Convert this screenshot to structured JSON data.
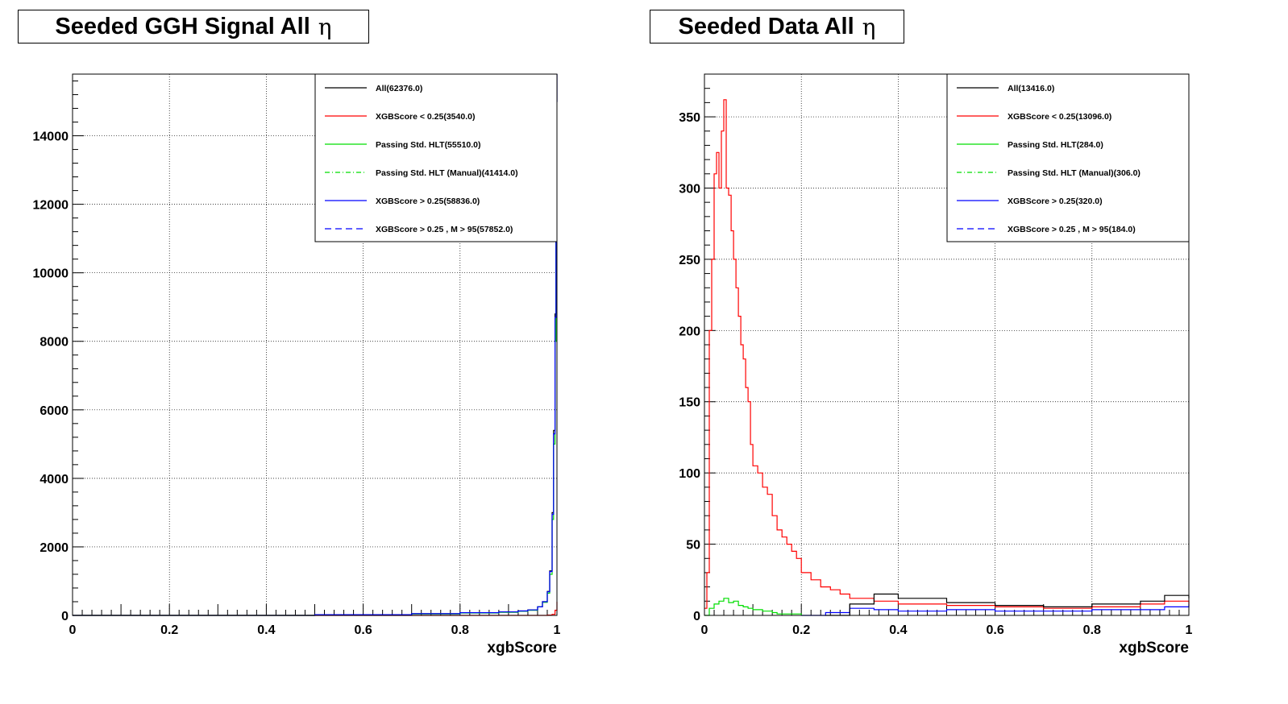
{
  "chart_data": [
    {
      "type": "histogram",
      "title": "Seeded GGH Signal All",
      "title_symbol": "η",
      "xlabel": "xgbScore",
      "ylabel": "",
      "xlim": [
        0,
        1
      ],
      "ylim": [
        0,
        15800
      ],
      "xticks": [
        "0",
        "0.2",
        "0.4",
        "0.6",
        "0.8",
        "1"
      ],
      "yticks": [
        "0",
        "2000",
        "4000",
        "6000",
        "8000",
        "10000",
        "12000",
        "14000"
      ],
      "ytick_values": [
        0,
        2000,
        4000,
        6000,
        8000,
        10000,
        12000,
        14000
      ],
      "grid": true,
      "legend_position": "top-right",
      "legend": [
        {
          "label": "All(62376.0)",
          "color": "#000000",
          "style": "solid"
        },
        {
          "label": "XGBScore < 0.25(3540.0)",
          "color": "#ff0000",
          "style": "solid"
        },
        {
          "label": "Passing Std. HLT(55510.0)",
          "color": "#00dd00",
          "style": "solid"
        },
        {
          "label": "Passing Std. HLT (Manual)(41414.0)",
          "color": "#00dd00",
          "style": "dashdot"
        },
        {
          "label": "XGBScore > 0.25(58836.0)",
          "color": "#0000ff",
          "style": "solid"
        },
        {
          "label": "XGBScore > 0.25 , M > 95(57852.0)",
          "color": "#0000ff",
          "style": "dashed"
        }
      ],
      "series": [
        {
          "x": [
            0.0,
            0.5,
            0.7,
            0.8,
            0.88,
            0.92,
            0.94,
            0.96,
            0.97,
            0.98,
            0.985,
            0.99,
            0.993,
            0.996,
            0.998,
            1.0
          ],
          "y": [
            0,
            20,
            50,
            80,
            100,
            130,
            160,
            250,
            400,
            700,
            1300,
            3000,
            5400,
            8800,
            15000,
            15800
          ],
          "color": "#000000",
          "dash": ""
        },
        {
          "x": [
            0.0,
            0.97,
            0.98,
            0.99,
            0.996,
            1.0
          ],
          "y": [
            0,
            0,
            10,
            30,
            150,
            400
          ],
          "color": "#ff0000",
          "dash": ""
        },
        {
          "x": [
            0.0,
            0.5,
            0.7,
            0.8,
            0.88,
            0.92,
            0.94,
            0.96,
            0.97,
            0.98,
            0.985,
            0.99,
            0.993,
            0.996,
            0.998,
            1.0
          ],
          "y": [
            0,
            15,
            40,
            70,
            90,
            120,
            150,
            250,
            380,
            650,
            1200,
            2800,
            5000,
            8000,
            12000,
            12000
          ],
          "color": "#00dd00",
          "dash": ""
        },
        {
          "x": [
            0.0,
            0.5,
            0.7,
            0.8,
            0.88,
            0.92,
            0.94,
            0.96,
            0.97,
            0.98,
            0.985,
            0.99,
            0.993,
            0.996,
            0.998,
            1.0
          ],
          "y": [
            0,
            20,
            50,
            80,
            100,
            130,
            160,
            250,
            400,
            690,
            1280,
            2950,
            5300,
            8700,
            15000,
            15800
          ],
          "color": "#0000ff",
          "dash": ""
        }
      ]
    },
    {
      "type": "histogram",
      "title": "Seeded Data All",
      "title_symbol": "η",
      "xlabel": "xgbScore",
      "ylabel": "",
      "xlim": [
        0,
        1
      ],
      "ylim": [
        0,
        380
      ],
      "xticks": [
        "0",
        "0.2",
        "0.4",
        "0.6",
        "0.8",
        "1"
      ],
      "yticks": [
        "0",
        "50",
        "100",
        "150",
        "200",
        "250",
        "300",
        "350"
      ],
      "ytick_values": [
        0,
        50,
        100,
        150,
        200,
        250,
        300,
        350
      ],
      "grid": true,
      "legend_position": "top-right",
      "legend": [
        {
          "label": "All(13416.0)",
          "color": "#000000",
          "style": "solid"
        },
        {
          "label": "XGBScore < 0.25(13096.0)",
          "color": "#ff0000",
          "style": "solid"
        },
        {
          "label": "Passing Std. HLT(284.0)",
          "color": "#00dd00",
          "style": "solid"
        },
        {
          "label": "Passing Std. HLT (Manual)(306.0)",
          "color": "#00dd00",
          "style": "dashdot"
        },
        {
          "label": "XGBScore > 0.25(320.0)",
          "color": "#0000ff",
          "style": "solid"
        },
        {
          "label": "XGBScore > 0.25 , M > 95(184.0)",
          "color": "#0000ff",
          "style": "dashed"
        }
      ],
      "series": [
        {
          "x": [
            0.0,
            0.005,
            0.01,
            0.015,
            0.02,
            0.025,
            0.03,
            0.035,
            0.04,
            0.045,
            0.05,
            0.055,
            0.06,
            0.065,
            0.07,
            0.075,
            0.08,
            0.085,
            0.09,
            0.095,
            0.1,
            0.11,
            0.12,
            0.13,
            0.14,
            0.15,
            0.16,
            0.17,
            0.18,
            0.19,
            0.2,
            0.22,
            0.24,
            0.26,
            0.28,
            0.3,
            0.35,
            0.4,
            0.5,
            0.6,
            0.7,
            0.8,
            0.9,
            0.95,
            1.0
          ],
          "y": [
            5,
            30,
            200,
            250,
            310,
            325,
            300,
            340,
            362,
            300,
            295,
            270,
            250,
            230,
            210,
            190,
            180,
            160,
            150,
            120,
            105,
            100,
            90,
            85,
            70,
            60,
            55,
            50,
            45,
            40,
            30,
            25,
            20,
            18,
            15,
            12,
            10,
            8,
            7,
            6,
            5,
            6,
            8,
            10,
            8
          ],
          "color": "#ff0000",
          "dash": ""
        },
        {
          "x": [
            0.0,
            0.01,
            0.02,
            0.03,
            0.04,
            0.05,
            0.06,
            0.07,
            0.08,
            0.09,
            0.1,
            0.12,
            0.14,
            0.15,
            0.2
          ],
          "y": [
            0,
            5,
            8,
            10,
            12,
            9,
            10,
            7,
            6,
            5,
            4,
            3,
            2,
            1,
            0
          ],
          "color": "#00dd00",
          "dash": ""
        },
        {
          "x": [
            0.2,
            0.25,
            0.3,
            0.35,
            0.4,
            0.5,
            0.6,
            0.7,
            0.8,
            0.9,
            0.95,
            1.0
          ],
          "y": [
            0,
            2,
            5,
            4,
            3,
            4,
            3,
            3,
            4,
            4,
            6,
            8
          ],
          "color": "#0000ff",
          "dash": ""
        },
        {
          "x": [
            0.25,
            0.3,
            0.35,
            0.4,
            0.5,
            0.6,
            0.7,
            0.8,
            0.9,
            0.95,
            1.0
          ],
          "y": [
            0,
            8,
            15,
            12,
            9,
            7,
            6,
            8,
            10,
            14,
            12
          ],
          "color": "#000000",
          "dash": ""
        }
      ]
    }
  ]
}
